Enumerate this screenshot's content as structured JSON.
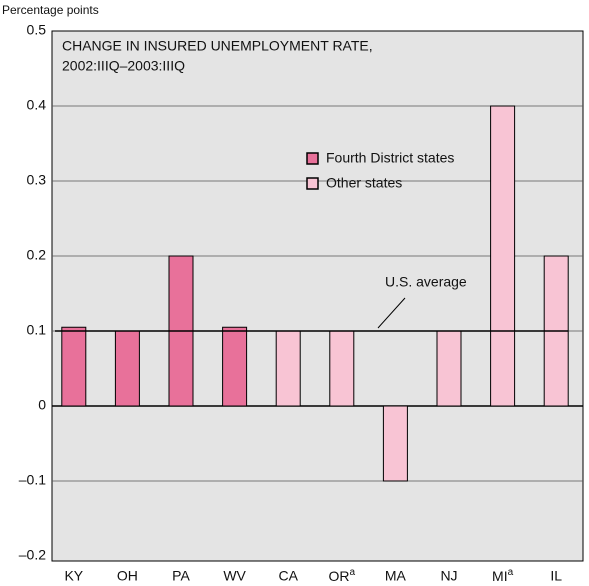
{
  "chart_data": {
    "type": "bar",
    "title": "CHANGE IN INSURED UNEMPLOYMENT RATE,",
    "subtitle": "2002:IIIQ–2003:IIIQ",
    "y_label": "Percentage points",
    "categories": [
      "KY",
      "OH",
      "PA",
      "WV",
      "CA",
      "OR",
      "MA",
      "NJ",
      "MI",
      "IL"
    ],
    "category_superscripts": [
      null,
      null,
      null,
      null,
      null,
      "a",
      null,
      null,
      "a",
      null
    ],
    "series": [
      {
        "name": "Fourth District states",
        "color": "#e8719a",
        "values": [
          0.105,
          0.1,
          0.2,
          0.105,
          null,
          null,
          null,
          null,
          null,
          null
        ]
      },
      {
        "name": "Other states",
        "color": "#f8c4d4",
        "values": [
          null,
          null,
          null,
          null,
          0.1,
          0.1,
          -0.1,
          0.1,
          0.4,
          0.2
        ]
      }
    ],
    "reference_line": {
      "value": 0.1,
      "label": "U.S. average"
    },
    "ylim": [
      -0.2,
      0.5
    ],
    "yticks": [
      {
        "value": -0.2,
        "label": "–0.2"
      },
      {
        "value": -0.1,
        "label": "–0.1"
      },
      0,
      0.1,
      0.2,
      0.3,
      0.4,
      0.5
    ],
    "grid": true
  }
}
